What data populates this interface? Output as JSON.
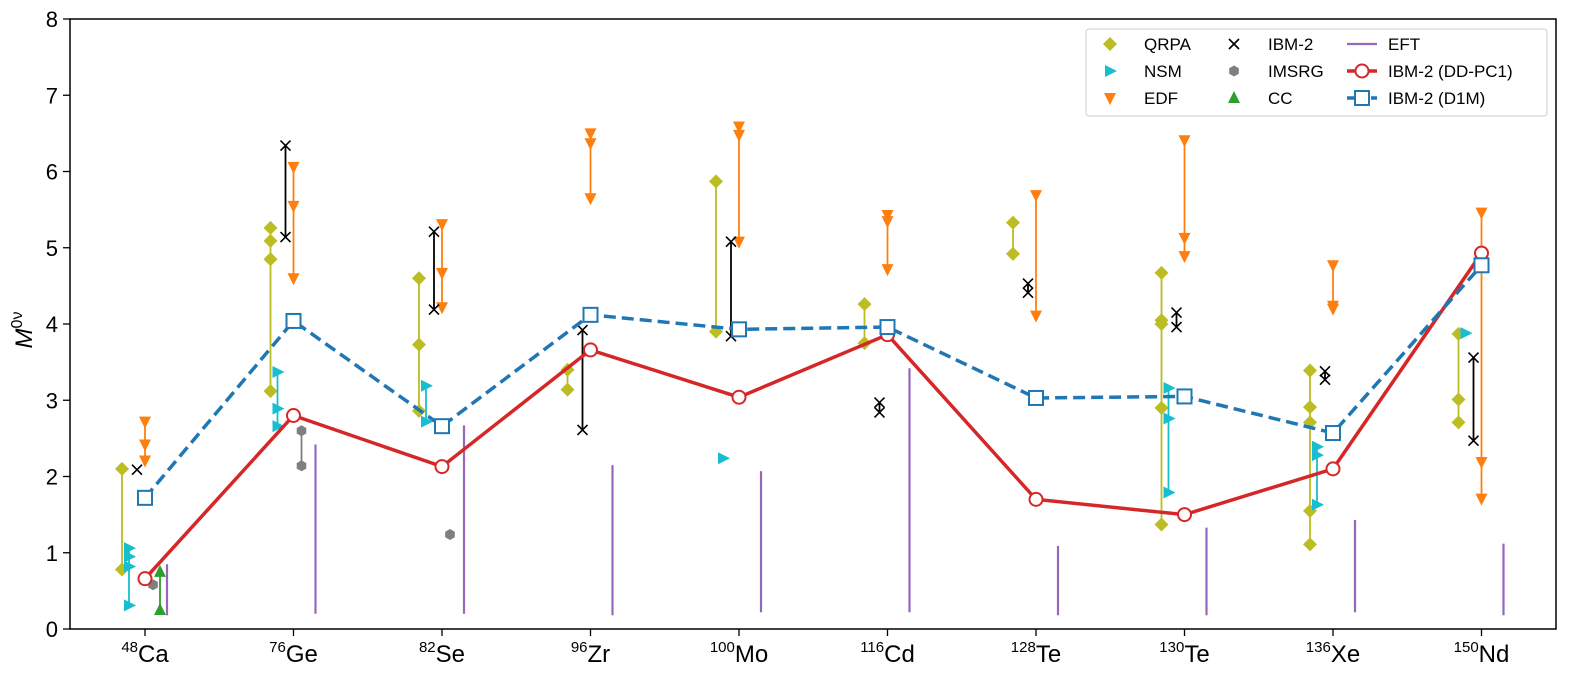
{
  "chart_data": {
    "type": "scatter",
    "title": "",
    "xlabel": "",
    "ylabel": {
      "base": "M",
      "sup": "0ν"
    },
    "ylim": [
      0,
      8
    ],
    "yticks": [
      0,
      1,
      2,
      3,
      4,
      5,
      6,
      7,
      8
    ],
    "grid": false,
    "legend_position": "top-right",
    "categories": [
      {
        "mass": "48",
        "el": "Ca"
      },
      {
        "mass": "76",
        "el": "Ge"
      },
      {
        "mass": "82",
        "el": "Se"
      },
      {
        "mass": "96",
        "el": "Zr"
      },
      {
        "mass": "100",
        "el": "Mo"
      },
      {
        "mass": "116",
        "el": "Cd"
      },
      {
        "mass": "128",
        "el": "Te"
      },
      {
        "mass": "130",
        "el": "Te"
      },
      {
        "mass": "136",
        "el": "Xe"
      },
      {
        "mass": "150",
        "el": "Nd"
      }
    ],
    "legend": [
      {
        "key": "QRPA",
        "label": "QRPA"
      },
      {
        "key": "IBM2",
        "label": "IBM-2"
      },
      {
        "key": "EFT",
        "label": "EFT"
      },
      {
        "key": "NSM",
        "label": "NSM"
      },
      {
        "key": "IMSRG",
        "label": "IMSRG"
      },
      {
        "key": "DDPC1",
        "label": "IBM-2 (DD-PC1)"
      },
      {
        "key": "EDF",
        "label": "EDF"
      },
      {
        "key": "CC",
        "label": "CC"
      },
      {
        "key": "D1M",
        "label": "IBM-2 (D1M)"
      }
    ],
    "colors": {
      "QRPA": "#bcbd22",
      "NSM": "#17becf",
      "EDF": "#ff7f0e",
      "IBM2": "#000000",
      "IMSRG": "#7f7f7f",
      "CC": "#2ca02c",
      "EFT": "#9467bd",
      "DDPC1": "#d62728",
      "D1M": "#1f77b4"
    },
    "series": [
      {
        "name": "QRPA",
        "marker": "diamond",
        "points": [
          {
            "cat": 0,
            "values": [
              2.1,
              0.78
            ]
          },
          {
            "cat": 1,
            "values": [
              5.26,
              5.09,
              4.85,
              3.12
            ]
          },
          {
            "cat": 2,
            "values": [
              4.6,
              3.73,
              2.86
            ]
          },
          {
            "cat": 3,
            "values": [
              3.4,
              3.14
            ]
          },
          {
            "cat": 4,
            "values": [
              5.87,
              3.9
            ]
          },
          {
            "cat": 5,
            "values": [
              4.26,
              3.75
            ]
          },
          {
            "cat": 6,
            "values": [
              5.33,
              4.92
            ]
          },
          {
            "cat": 7,
            "values": [
              4.67,
              4.05,
              4.0,
              2.9,
              1.37
            ]
          },
          {
            "cat": 8,
            "values": [
              3.39,
              2.91,
              2.71,
              1.55,
              1.11
            ]
          },
          {
            "cat": 9,
            "values": [
              3.87,
              3.01,
              2.71
            ]
          }
        ]
      },
      {
        "name": "NSM",
        "marker": "triangle-right",
        "points": [
          {
            "cat": 0,
            "values": [
              1.06,
              0.95,
              0.82,
              0.31
            ]
          },
          {
            "cat": 1,
            "values": [
              3.37,
              2.89,
              2.66
            ]
          },
          {
            "cat": 2,
            "values": [
              3.19,
              2.72
            ]
          },
          {
            "cat": 4,
            "values": [
              2.24
            ]
          },
          {
            "cat": 7,
            "values": [
              3.16,
              2.76,
              1.79
            ]
          },
          {
            "cat": 8,
            "values": [
              2.39,
              2.28,
              1.63
            ]
          },
          {
            "cat": 9,
            "values": [
              3.88
            ]
          }
        ]
      },
      {
        "name": "EDF",
        "marker": "triangle-down",
        "points": [
          {
            "cat": 0,
            "values": [
              2.72,
              2.42,
              2.21
            ]
          },
          {
            "cat": 1,
            "values": [
              6.06,
              5.55,
              4.6
            ]
          },
          {
            "cat": 2,
            "values": [
              5.31,
              4.67,
              4.22
            ]
          },
          {
            "cat": 3,
            "values": [
              6.5,
              6.37,
              5.65
            ]
          },
          {
            "cat": 4,
            "values": [
              6.59,
              6.48,
              5.08
            ]
          },
          {
            "cat": 5,
            "values": [
              5.43,
              5.35,
              4.72
            ]
          },
          {
            "cat": 6,
            "values": [
              5.69,
              4.11
            ]
          },
          {
            "cat": 7,
            "values": [
              6.41,
              5.13,
              4.89
            ]
          },
          {
            "cat": 8,
            "values": [
              4.77,
              4.24,
              4.2
            ]
          },
          {
            "cat": 9,
            "values": [
              5.46,
              2.19,
              1.71
            ]
          }
        ]
      },
      {
        "name": "IBM-2",
        "marker": "x",
        "points": [
          {
            "cat": 0,
            "values": [
              2.09
            ]
          },
          {
            "cat": 1,
            "values": [
              6.34,
              5.14
            ]
          },
          {
            "cat": 2,
            "values": [
              5.21,
              4.19
            ]
          },
          {
            "cat": 3,
            "values": [
              3.92,
              2.61
            ]
          },
          {
            "cat": 4,
            "values": [
              5.08,
              3.84
            ]
          },
          {
            "cat": 5,
            "values": [
              2.97,
              2.84
            ]
          },
          {
            "cat": 6,
            "values": [
              4.53,
              4.41
            ]
          },
          {
            "cat": 7,
            "values": [
              4.15,
              3.96
            ]
          },
          {
            "cat": 8,
            "values": [
              3.38,
              3.27
            ]
          },
          {
            "cat": 9,
            "values": [
              3.56,
              2.47
            ]
          }
        ]
      },
      {
        "name": "IMSRG",
        "marker": "hexagon",
        "points": [
          {
            "cat": 0,
            "values": [
              0.58
            ]
          },
          {
            "cat": 1,
            "values": [
              2.6,
              2.14
            ]
          },
          {
            "cat": 2,
            "values": [
              1.24
            ]
          }
        ]
      },
      {
        "name": "CC",
        "marker": "triangle-up",
        "points": [
          {
            "cat": 0,
            "values": [
              0.75,
              0.25
            ]
          }
        ]
      },
      {
        "name": "EFT",
        "marker": "vline",
        "points": [
          {
            "cat": 0,
            "values": [
              0.18,
              0.85
            ]
          },
          {
            "cat": 1,
            "values": [
              0.2,
              2.42
            ]
          },
          {
            "cat": 2,
            "values": [
              0.2,
              2.67
            ]
          },
          {
            "cat": 3,
            "values": [
              0.18,
              2.15
            ]
          },
          {
            "cat": 4,
            "values": [
              0.22,
              2.07
            ]
          },
          {
            "cat": 5,
            "values": [
              0.22,
              3.42
            ]
          },
          {
            "cat": 6,
            "values": [
              0.18,
              1.09
            ]
          },
          {
            "cat": 7,
            "values": [
              0.18,
              1.33
            ]
          },
          {
            "cat": 8,
            "values": [
              0.22,
              1.43
            ]
          },
          {
            "cat": 9,
            "values": [
              0.18,
              1.12
            ]
          }
        ]
      },
      {
        "name": "IBM-2 (DD-PC1)",
        "marker": "circle-line",
        "values": [
          0.66,
          2.8,
          2.13,
          3.66,
          3.04,
          3.86,
          1.7,
          1.5,
          2.1,
          4.93
        ]
      },
      {
        "name": "IBM-2 (D1M)",
        "marker": "square-dashed-line",
        "values": [
          1.72,
          4.04,
          2.66,
          4.12,
          3.93,
          3.96,
          3.03,
          3.05,
          2.57,
          4.77
        ]
      }
    ]
  }
}
